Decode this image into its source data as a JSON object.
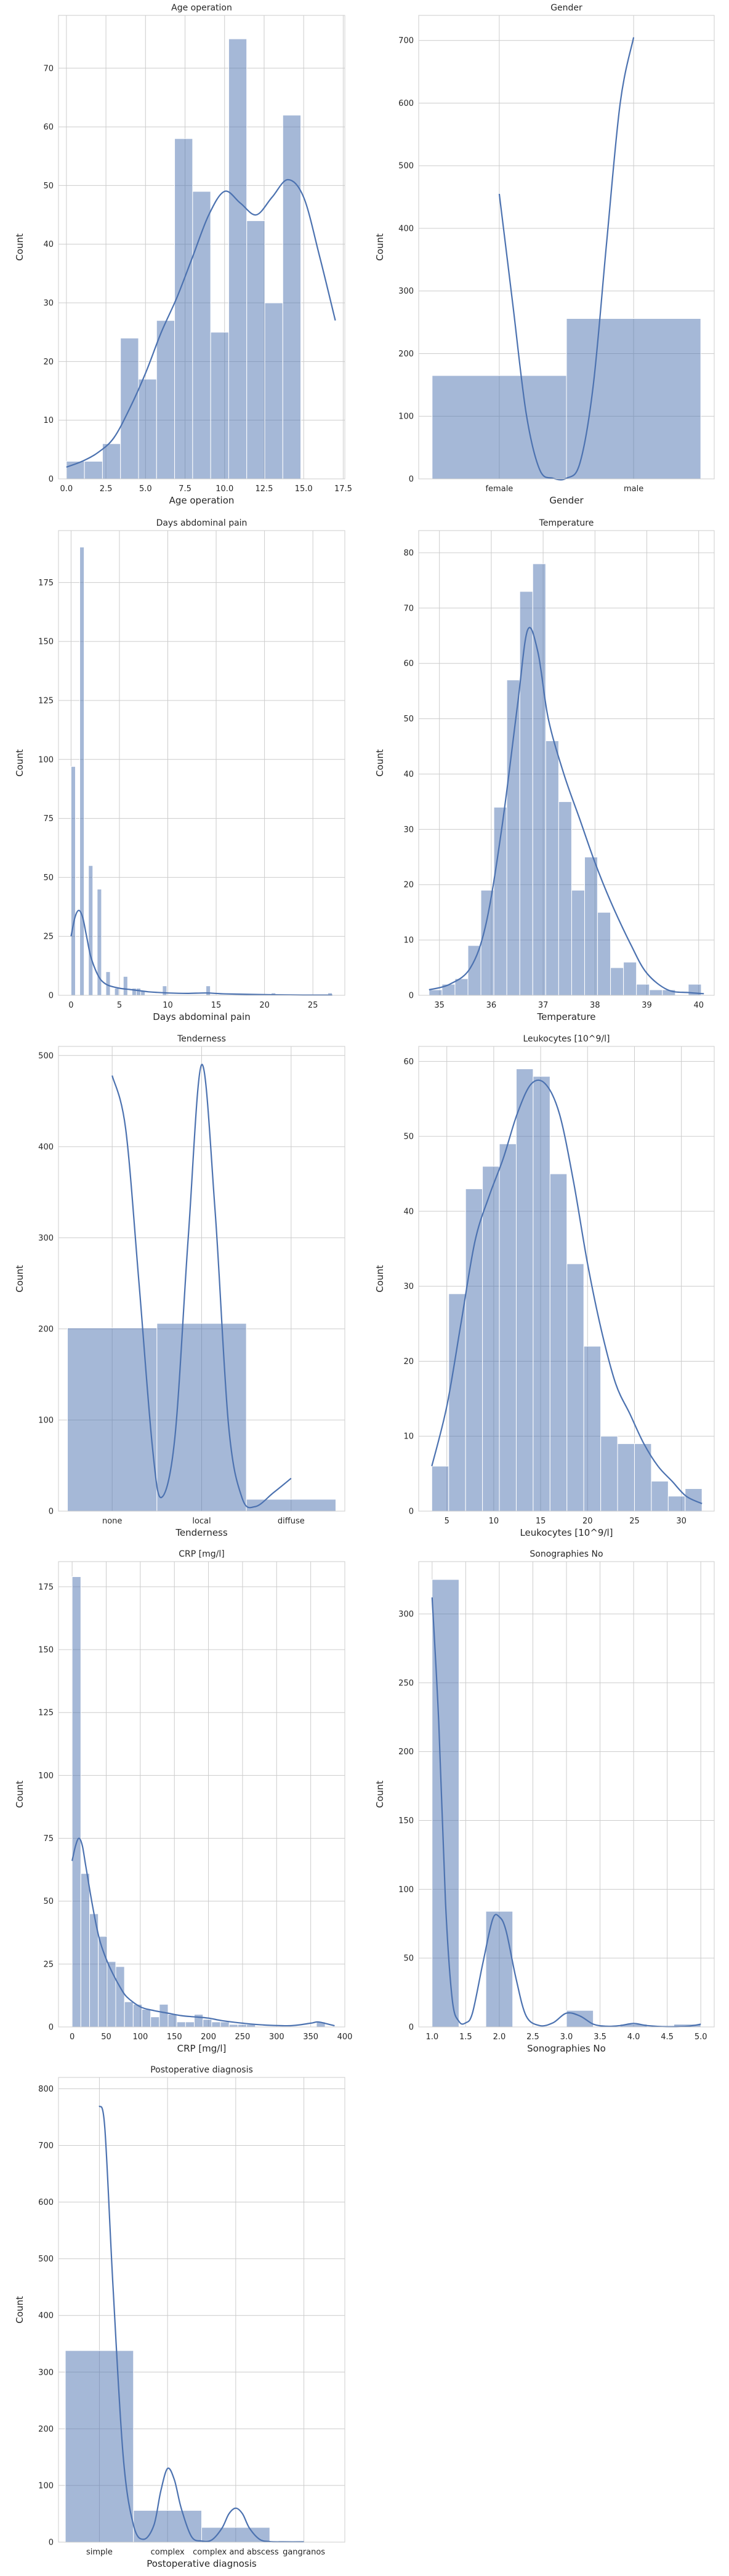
{
  "chart_data": [
    {
      "type": "bar",
      "title": "Age operation",
      "xlabel": "Age operation",
      "ylabel": "Count",
      "xlim": [
        -0.5,
        17.6
      ],
      "ylim": [
        0,
        79
      ],
      "xticks": [
        0.0,
        2.5,
        5.0,
        7.5,
        10.0,
        12.5,
        15.0,
        17.5
      ],
      "xtick_labels": [
        "0.0",
        "2.5",
        "5.0",
        "7.5",
        "10.0",
        "12.5",
        "15.0",
        "17.5"
      ],
      "yticks": [
        0,
        10,
        20,
        30,
        40,
        50,
        60,
        70
      ],
      "bins": [
        {
          "x0": 0.0,
          "x1": 1.14,
          "count": 3
        },
        {
          "x0": 1.14,
          "x1": 2.28,
          "count": 3
        },
        {
          "x0": 2.28,
          "x1": 3.42,
          "count": 6
        },
        {
          "x0": 3.42,
          "x1": 4.56,
          "count": 24
        },
        {
          "x0": 4.56,
          "x1": 5.7,
          "count": 17
        },
        {
          "x0": 5.7,
          "x1": 6.84,
          "count": 27
        },
        {
          "x0": 6.84,
          "x1": 7.98,
          "count": 58
        },
        {
          "x0": 7.98,
          "x1": 9.12,
          "count": 49
        },
        {
          "x0": 9.12,
          "x1": 10.26,
          "count": 25
        },
        {
          "x0": 10.26,
          "x1": 11.4,
          "count": 75
        },
        {
          "x0": 11.4,
          "x1": 12.54,
          "count": 44
        },
        {
          "x0": 12.54,
          "x1": 13.68,
          "count": 30
        },
        {
          "x0": 13.68,
          "x1": 14.82,
          "count": 62
        }
      ],
      "kde": {
        "x": [
          0,
          1,
          2,
          3,
          4,
          5,
          6,
          7,
          8,
          9,
          10,
          11,
          12,
          13,
          14,
          15,
          16,
          17
        ],
        "y": [
          2,
          3,
          4.5,
          7,
          12,
          18,
          25,
          31,
          38,
          45,
          49,
          47,
          45,
          48,
          51,
          48,
          38,
          27
        ]
      }
    },
    {
      "type": "bar",
      "title": "Gender",
      "xlabel": "Gender",
      "ylabel": "Count",
      "categories": [
        "female",
        "male"
      ],
      "values": [
        165,
        256
      ],
      "ylim": [
        0,
        740
      ],
      "yticks": [
        0,
        100,
        200,
        300,
        400,
        500,
        600,
        700
      ],
      "kde": {
        "x": [
          0,
          0.1,
          0.2,
          0.3,
          0.4,
          0.5,
          0.6,
          0.7,
          0.8,
          0.9,
          1.0
        ],
        "y": [
          455,
          280,
          105,
          15,
          1,
          1,
          25,
          150,
          380,
          600,
          705
        ]
      }
    },
    {
      "type": "bar",
      "title": "Days abdominal pain",
      "xlabel": "Days abdominal pain",
      "ylabel": "Count",
      "xlim": [
        -1.3,
        28.3
      ],
      "ylim": [
        0,
        197
      ],
      "xticks": [
        0,
        5,
        10,
        15,
        20,
        25
      ],
      "xtick_labels": [
        "0",
        "5",
        "10",
        "15",
        "20",
        "25"
      ],
      "yticks": [
        0,
        25,
        50,
        75,
        100,
        125,
        150,
        175
      ],
      "bins": [
        {
          "x0": 0.0,
          "x1": 0.45,
          "count": 97
        },
        {
          "x0": 0.45,
          "x1": 0.9,
          "count": 0
        },
        {
          "x0": 0.9,
          "x1": 1.35,
          "count": 190
        },
        {
          "x0": 1.35,
          "x1": 1.8,
          "count": 0
        },
        {
          "x0": 1.8,
          "x1": 2.25,
          "count": 55
        },
        {
          "x0": 2.25,
          "x1": 2.7,
          "count": 0
        },
        {
          "x0": 2.7,
          "x1": 3.15,
          "count": 45
        },
        {
          "x0": 3.15,
          "x1": 3.6,
          "count": 0
        },
        {
          "x0": 3.6,
          "x1": 4.05,
          "count": 10
        },
        {
          "x0": 4.05,
          "x1": 4.5,
          "count": 0
        },
        {
          "x0": 4.5,
          "x1": 4.95,
          "count": 3
        },
        {
          "x0": 4.95,
          "x1": 5.4,
          "count": 0
        },
        {
          "x0": 5.4,
          "x1": 5.85,
          "count": 8
        },
        {
          "x0": 5.85,
          "x1": 6.3,
          "count": 0
        },
        {
          "x0": 6.3,
          "x1": 6.75,
          "count": 3
        },
        {
          "x0": 6.75,
          "x1": 7.2,
          "count": 3
        },
        {
          "x0": 7.2,
          "x1": 7.65,
          "count": 2
        },
        {
          "x0": 9.45,
          "x1": 9.9,
          "count": 4
        },
        {
          "x0": 13.95,
          "x1": 14.4,
          "count": 4
        },
        {
          "x0": 20.7,
          "x1": 21.15,
          "count": 1
        },
        {
          "x0": 26.55,
          "x1": 27.0,
          "count": 1
        }
      ],
      "kde": {
        "x": [
          0,
          0.4,
          0.8,
          1.2,
          1.6,
          2,
          2.5,
          3,
          3.5,
          4,
          5,
          6,
          7,
          8,
          10,
          12,
          14,
          16,
          20,
          24,
          27
        ],
        "y": [
          25,
          33,
          36,
          33,
          25,
          17,
          11,
          7,
          5,
          4,
          3,
          2.5,
          2,
          1.5,
          1,
          0.8,
          1,
          0.6,
          0.3,
          0.1,
          0.1
        ]
      }
    },
    {
      "type": "bar",
      "title": "Temperature",
      "xlabel": "Temperature",
      "ylabel": "Count",
      "xlim": [
        34.6,
        40.3
      ],
      "ylim": [
        0,
        84
      ],
      "xticks": [
        35,
        36,
        37,
        38,
        39,
        40
      ],
      "xtick_labels": [
        "35",
        "36",
        "37",
        "38",
        "39",
        "40"
      ],
      "yticks": [
        0,
        10,
        20,
        30,
        40,
        50,
        60,
        70,
        80
      ],
      "bins": [
        {
          "x0": 34.8,
          "x1": 35.05,
          "count": 1
        },
        {
          "x0": 35.05,
          "x1": 35.3,
          "count": 2
        },
        {
          "x0": 35.3,
          "x1": 35.55,
          "count": 3
        },
        {
          "x0": 35.55,
          "x1": 35.8,
          "count": 9
        },
        {
          "x0": 35.8,
          "x1": 36.05,
          "count": 19
        },
        {
          "x0": 36.05,
          "x1": 36.3,
          "count": 34
        },
        {
          "x0": 36.3,
          "x1": 36.55,
          "count": 57
        },
        {
          "x0": 36.55,
          "x1": 36.8,
          "count": 73
        },
        {
          "x0": 36.8,
          "x1": 37.05,
          "count": 78
        },
        {
          "x0": 37.05,
          "x1": 37.3,
          "count": 46
        },
        {
          "x0": 37.3,
          "x1": 37.55,
          "count": 35
        },
        {
          "x0": 37.55,
          "x1": 37.8,
          "count": 19
        },
        {
          "x0": 37.8,
          "x1": 38.05,
          "count": 25
        },
        {
          "x0": 38.05,
          "x1": 38.3,
          "count": 15
        },
        {
          "x0": 38.3,
          "x1": 38.55,
          "count": 5
        },
        {
          "x0": 38.55,
          "x1": 38.8,
          "count": 6
        },
        {
          "x0": 38.8,
          "x1": 39.05,
          "count": 2
        },
        {
          "x0": 39.05,
          "x1": 39.3,
          "count": 1
        },
        {
          "x0": 39.3,
          "x1": 39.55,
          "count": 1
        },
        {
          "x0": 39.8,
          "x1": 40.05,
          "count": 2
        }
      ],
      "kde": {
        "x": [
          34.8,
          35.2,
          35.6,
          35.9,
          36.2,
          36.5,
          36.7,
          36.9,
          37.1,
          37.4,
          37.7,
          38.0,
          38.3,
          38.7,
          39.0,
          39.4,
          39.8,
          40.1
        ],
        "y": [
          1,
          2,
          5,
          13,
          30,
          52,
          66,
          62,
          50,
          40,
          32,
          24,
          17,
          9,
          4,
          1,
          0.5,
          0.3
        ]
      }
    },
    {
      "type": "bar",
      "title": "Tenderness",
      "xlabel": "Tenderness",
      "ylabel": "Count",
      "categories": [
        "none",
        "local",
        "diffuse"
      ],
      "values": [
        201,
        206,
        13
      ],
      "ylim": [
        0,
        510
      ],
      "yticks": [
        0,
        100,
        200,
        300,
        400,
        500
      ],
      "kde": {
        "x": [
          0,
          0.15,
          0.3,
          0.45,
          0.55,
          0.7,
          0.85,
          1.0,
          1.15,
          1.3,
          1.45,
          1.6,
          1.8,
          2.0
        ],
        "y": [
          478,
          420,
          250,
          70,
          15,
          80,
          300,
          490,
          330,
          95,
          15,
          5,
          20,
          36
        ]
      }
    },
    {
      "type": "bar",
      "title": "Leukocytes [10^9/l]",
      "xlabel": "Leukocytes [10^9/l]",
      "ylabel": "Count",
      "xlim": [
        2.0,
        33.5
      ],
      "ylim": [
        0,
        62
      ],
      "xticks": [
        5,
        10,
        15,
        20,
        25,
        30
      ],
      "xtick_labels": [
        "5",
        "10",
        "15",
        "20",
        "25",
        "30"
      ],
      "yticks": [
        0,
        10,
        20,
        30,
        40,
        50,
        60
      ],
      "bins": [
        {
          "x0": 3.4,
          "x1": 5.2,
          "count": 6
        },
        {
          "x0": 5.2,
          "x1": 7.0,
          "count": 29
        },
        {
          "x0": 7.0,
          "x1": 8.8,
          "count": 43
        },
        {
          "x0": 8.8,
          "x1": 10.6,
          "count": 46
        },
        {
          "x0": 10.6,
          "x1": 12.4,
          "count": 49
        },
        {
          "x0": 12.4,
          "x1": 14.2,
          "count": 59
        },
        {
          "x0": 14.2,
          "x1": 16.0,
          "count": 58
        },
        {
          "x0": 16.0,
          "x1": 17.8,
          "count": 45
        },
        {
          "x0": 17.8,
          "x1": 19.6,
          "count": 33
        },
        {
          "x0": 19.6,
          "x1": 21.4,
          "count": 22
        },
        {
          "x0": 21.4,
          "x1": 23.2,
          "count": 10
        },
        {
          "x0": 23.2,
          "x1": 25.0,
          "count": 9
        },
        {
          "x0": 25.0,
          "x1": 26.8,
          "count": 9
        },
        {
          "x0": 26.8,
          "x1": 28.6,
          "count": 4
        },
        {
          "x0": 28.6,
          "x1": 30.4,
          "count": 2
        },
        {
          "x0": 30.4,
          "x1": 32.2,
          "count": 3
        }
      ],
      "kde": {
        "x": [
          3.4,
          5,
          6.5,
          8,
          9.5,
          11,
          12.5,
          14,
          15.5,
          17,
          18.5,
          20,
          21.5,
          23,
          24.5,
          26,
          27.5,
          29,
          30.5,
          32.2
        ],
        "y": [
          6,
          14,
          25,
          36,
          42,
          47,
          53,
          57,
          57,
          53,
          44,
          33,
          24,
          17,
          13,
          9,
          6,
          4,
          2,
          1
        ]
      }
    },
    {
      "type": "bar",
      "title": "CRP [mg/l]",
      "xlabel": "CRP [mg/l]",
      "ylabel": "Count",
      "xlim": [
        -20,
        400
      ],
      "ylim": [
        0,
        185
      ],
      "xticks": [
        0,
        50,
        100,
        150,
        200,
        250,
        300,
        350,
        400
      ],
      "xtick_labels": [
        "0",
        "50",
        "100",
        "150",
        "200",
        "250",
        "300",
        "350",
        "400"
      ],
      "yticks": [
        0,
        25,
        50,
        75,
        100,
        125,
        150,
        175
      ],
      "bins": [
        {
          "x0": 0,
          "x1": 12.8,
          "count": 179
        },
        {
          "x0": 12.8,
          "x1": 25.6,
          "count": 61
        },
        {
          "x0": 25.6,
          "x1": 38.4,
          "count": 45
        },
        {
          "x0": 38.4,
          "x1": 51.2,
          "count": 36
        },
        {
          "x0": 51.2,
          "x1": 64.0,
          "count": 26
        },
        {
          "x0": 64.0,
          "x1": 76.8,
          "count": 24
        },
        {
          "x0": 76.8,
          "x1": 89.6,
          "count": 10
        },
        {
          "x0": 89.6,
          "x1": 102.4,
          "count": 9
        },
        {
          "x0": 102.4,
          "x1": 115.2,
          "count": 7
        },
        {
          "x0": 115.2,
          "x1": 128.0,
          "count": 4
        },
        {
          "x0": 128.0,
          "x1": 140.8,
          "count": 9
        },
        {
          "x0": 140.8,
          "x1": 153.6,
          "count": 5
        },
        {
          "x0": 153.6,
          "x1": 166.4,
          "count": 2
        },
        {
          "x0": 166.4,
          "x1": 179.2,
          "count": 2
        },
        {
          "x0": 179.2,
          "x1": 192.0,
          "count": 5
        },
        {
          "x0": 192.0,
          "x1": 204.8,
          "count": 3
        },
        {
          "x0": 204.8,
          "x1": 217.6,
          "count": 2
        },
        {
          "x0": 217.6,
          "x1": 230.4,
          "count": 2
        },
        {
          "x0": 230.4,
          "x1": 243.2,
          "count": 1
        },
        {
          "x0": 243.2,
          "x1": 256.0,
          "count": 1
        },
        {
          "x0": 256.0,
          "x1": 268.8,
          "count": 1
        },
        {
          "x0": 358.4,
          "x1": 371.2,
          "count": 2
        }
      ],
      "kde": {
        "x": [
          0,
          5,
          10,
          15,
          20,
          30,
          40,
          50,
          60,
          70,
          80,
          100,
          120,
          140,
          160,
          180,
          200,
          220,
          250,
          280,
          320,
          350,
          360,
          370,
          385
        ],
        "y": [
          66,
          72,
          75,
          72,
          64,
          48,
          35,
          27,
          21,
          16,
          12,
          8,
          6.5,
          5.5,
          4.5,
          4,
          3.5,
          2.5,
          1.5,
          0.8,
          0.5,
          1.5,
          2,
          1.5,
          0.5
        ]
      }
    },
    {
      "type": "bar",
      "title": "Sonographies No",
      "xlabel": "Sonographies No",
      "ylabel": "Count",
      "xlim": [
        0.8,
        5.2
      ],
      "ylim": [
        0,
        338
      ],
      "xticks": [
        1.0,
        1.5,
        2.0,
        2.5,
        3.0,
        3.5,
        4.0,
        4.5,
        5.0
      ],
      "xtick_labels": [
        "1.0",
        "1.5",
        "2.0",
        "2.5",
        "3.0",
        "3.5",
        "4.0",
        "4.5",
        "5.0"
      ],
      "yticks": [
        0,
        50,
        100,
        150,
        200,
        250,
        300
      ],
      "bins": [
        {
          "x0": 1.0,
          "x1": 1.4,
          "count": 325
        },
        {
          "x0": 1.8,
          "x1": 2.2,
          "count": 84
        },
        {
          "x0": 2.6,
          "x1": 3.0,
          "count": 0
        },
        {
          "x0": 3.0,
          "x1": 3.4,
          "count": 12
        },
        {
          "x0": 3.8,
          "x1": 4.2,
          "count": 2
        },
        {
          "x0": 4.6,
          "x1": 5.0,
          "count": 2
        }
      ],
      "kde": {
        "x": [
          1.0,
          1.1,
          1.2,
          1.3,
          1.4,
          1.5,
          1.6,
          1.75,
          1.9,
          2.0,
          2.1,
          2.25,
          2.4,
          2.6,
          2.8,
          3.0,
          3.2,
          3.4,
          3.6,
          3.8,
          4.0,
          4.2,
          4.5,
          4.8,
          5.0
        ],
        "y": [
          312,
          220,
          90,
          20,
          4,
          3,
          10,
          45,
          78,
          80,
          70,
          35,
          8,
          1,
          3,
          10,
          8,
          2,
          0.5,
          1,
          2.5,
          1,
          0.2,
          0.5,
          2
        ]
      }
    },
    {
      "type": "bar",
      "title": "Postoperative diagnosis",
      "xlabel": "Postoperative diagnosis",
      "ylabel": "Count",
      "categories": [
        "simple",
        "complex",
        "complex and abscess",
        "gangranos"
      ],
      "values": [
        338,
        56,
        26,
        1
      ],
      "ylim": [
        0,
        820
      ],
      "yticks": [
        0,
        100,
        200,
        300,
        400,
        500,
        600,
        700,
        800
      ],
      "kde": {
        "x": [
          0,
          0.08,
          0.2,
          0.35,
          0.5,
          0.65,
          0.8,
          0.9,
          1.0,
          1.1,
          1.2,
          1.35,
          1.5,
          1.65,
          1.8,
          1.9,
          2.0,
          2.1,
          2.2,
          2.35,
          2.5,
          2.7,
          3.0
        ],
        "y": [
          770,
          730,
          450,
          150,
          30,
          5,
          30,
          90,
          130,
          110,
          60,
          10,
          2,
          4,
          25,
          50,
          60,
          50,
          25,
          5,
          1,
          0.5,
          0.5
        ]
      }
    }
  ]
}
